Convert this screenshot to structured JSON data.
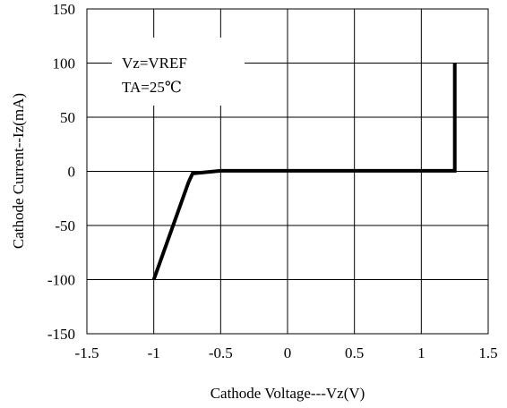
{
  "chart_data": {
    "type": "line",
    "xlabel": "Cathode Voltage---Vz(V)",
    "ylabel": "Cathode Current--Iz(mA)",
    "xlim": [
      -1.5,
      1.5
    ],
    "ylim": [
      -150,
      150
    ],
    "x_ticks": [
      -1.5,
      -1,
      -0.5,
      0,
      0.5,
      1,
      1.5
    ],
    "y_ticks": [
      -150,
      -100,
      -50,
      0,
      50,
      100,
      150
    ],
    "x_tick_labels": [
      "-1.5",
      "-1",
      "-0.5",
      "0",
      "0.5",
      "1",
      "1.5"
    ],
    "y_tick_labels": [
      "-150",
      "-100",
      "-50",
      "0",
      "50",
      "100",
      "150"
    ],
    "grid": true,
    "annotation_lines": [
      "Vz=VREF",
      "TA=25℃"
    ],
    "series": [
      {
        "x": [
          -1.0,
          -0.74,
          -0.71,
          -0.5,
          1.25,
          1.25
        ],
        "y": [
          -100,
          -10,
          -2,
          0.5,
          0.5,
          100
        ],
        "color": "#000000"
      }
    ]
  }
}
